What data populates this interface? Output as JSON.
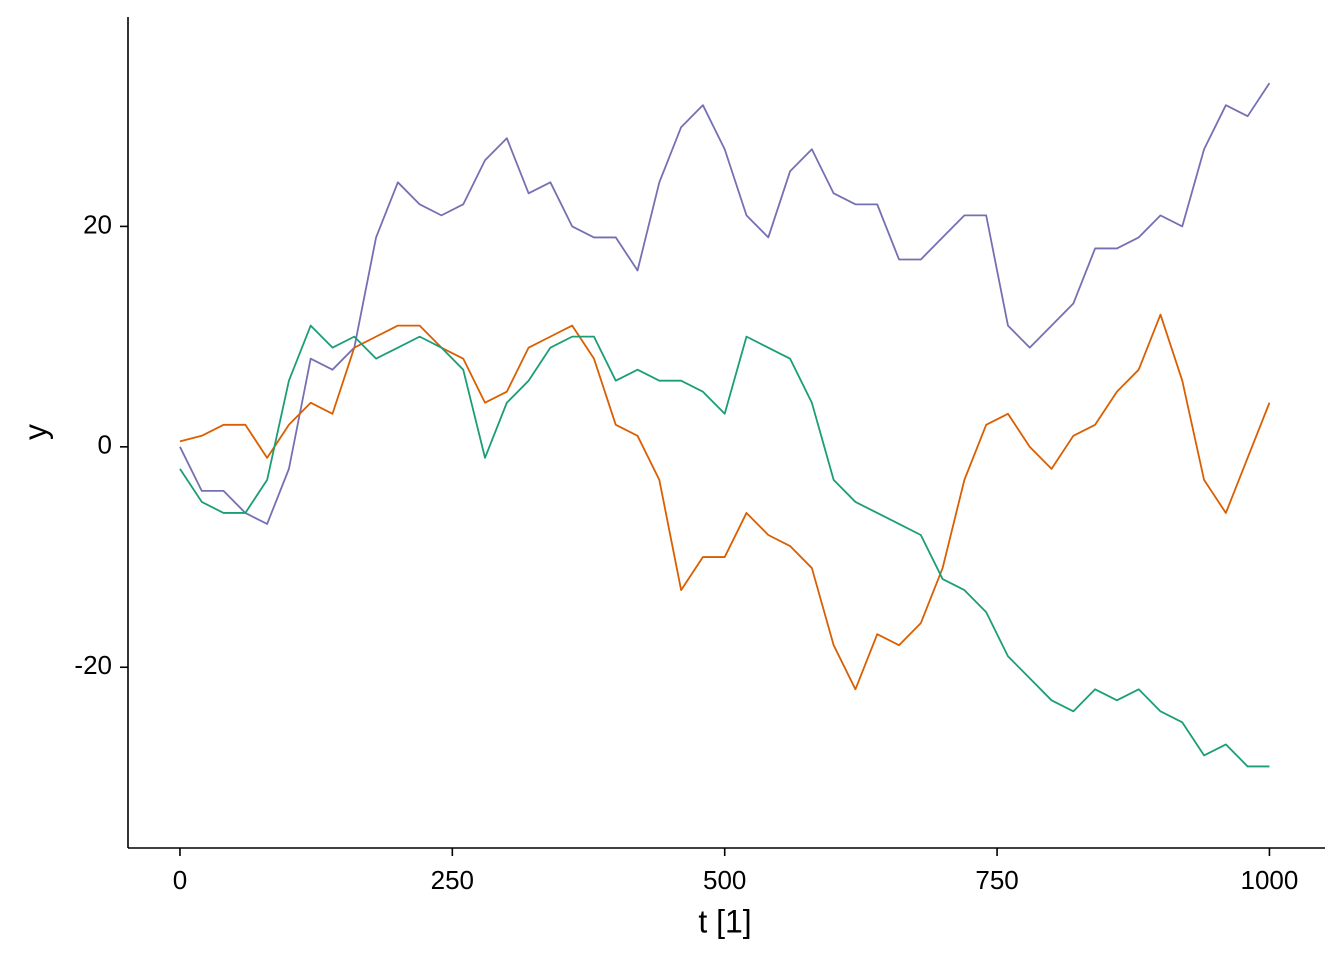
{
  "chart_data": {
    "type": "line",
    "x_label": "t [1]",
    "y_label": "y",
    "x": [
      0,
      20,
      40,
      60,
      80,
      100,
      120,
      140,
      160,
      180,
      200,
      220,
      240,
      260,
      280,
      300,
      320,
      340,
      360,
      380,
      400,
      420,
      440,
      460,
      480,
      500,
      520,
      540,
      560,
      580,
      600,
      620,
      640,
      660,
      680,
      700,
      720,
      740,
      760,
      780,
      800,
      820,
      840,
      860,
      880,
      900,
      920,
      940,
      960,
      980,
      1000
    ],
    "series": [
      {
        "color": "#7570b3",
        "values": [
          0,
          -4,
          -4,
          -6,
          -7,
          -2,
          8,
          7,
          9,
          19,
          24,
          22,
          21,
          22,
          26,
          28,
          23,
          24,
          20,
          19,
          19,
          16,
          24,
          29,
          31,
          27,
          21,
          19,
          25,
          27,
          23,
          22,
          22,
          17,
          17,
          19,
          21,
          21,
          11,
          9,
          11,
          13,
          18,
          18,
          19,
          21,
          20,
          27,
          31,
          30,
          33
        ]
      },
      {
        "color": "#d95f02",
        "values": [
          0.5,
          1,
          2,
          2,
          -1,
          2,
          4,
          3,
          9,
          10,
          11,
          11,
          9,
          8,
          4,
          5,
          9,
          10,
          11,
          8,
          2,
          1,
          -3,
          -13,
          -10,
          -10,
          -6,
          -8,
          -9,
          -11,
          -18,
          -22,
          -17,
          -18,
          -16,
          -11,
          -3,
          2,
          3,
          0,
          -2,
          1,
          2,
          5,
          7,
          12,
          6,
          -3,
          -6,
          -1,
          4
        ]
      },
      {
        "color": "#1b9e77",
        "values": [
          -2,
          -5,
          -6,
          -6,
          -3,
          6,
          11,
          9,
          10,
          8,
          9,
          10,
          9,
          7,
          -1,
          4,
          6,
          9,
          10,
          10,
          6,
          7,
          6,
          6,
          5,
          3,
          10,
          9,
          8,
          4,
          -3,
          -5,
          -6,
          -7,
          -8,
          -12,
          -13,
          -15,
          -19,
          -21,
          -23,
          -24,
          -22,
          -23,
          -22,
          -24,
          -25,
          -28,
          -27,
          -29,
          -29
        ]
      }
    ],
    "xlim": [
      -47.7,
      1051
    ],
    "ylim": [
      -36.4,
      39
    ],
    "xticks": [
      0,
      250,
      500,
      750,
      1000
    ],
    "yticks": [
      -20,
      0,
      20
    ]
  }
}
